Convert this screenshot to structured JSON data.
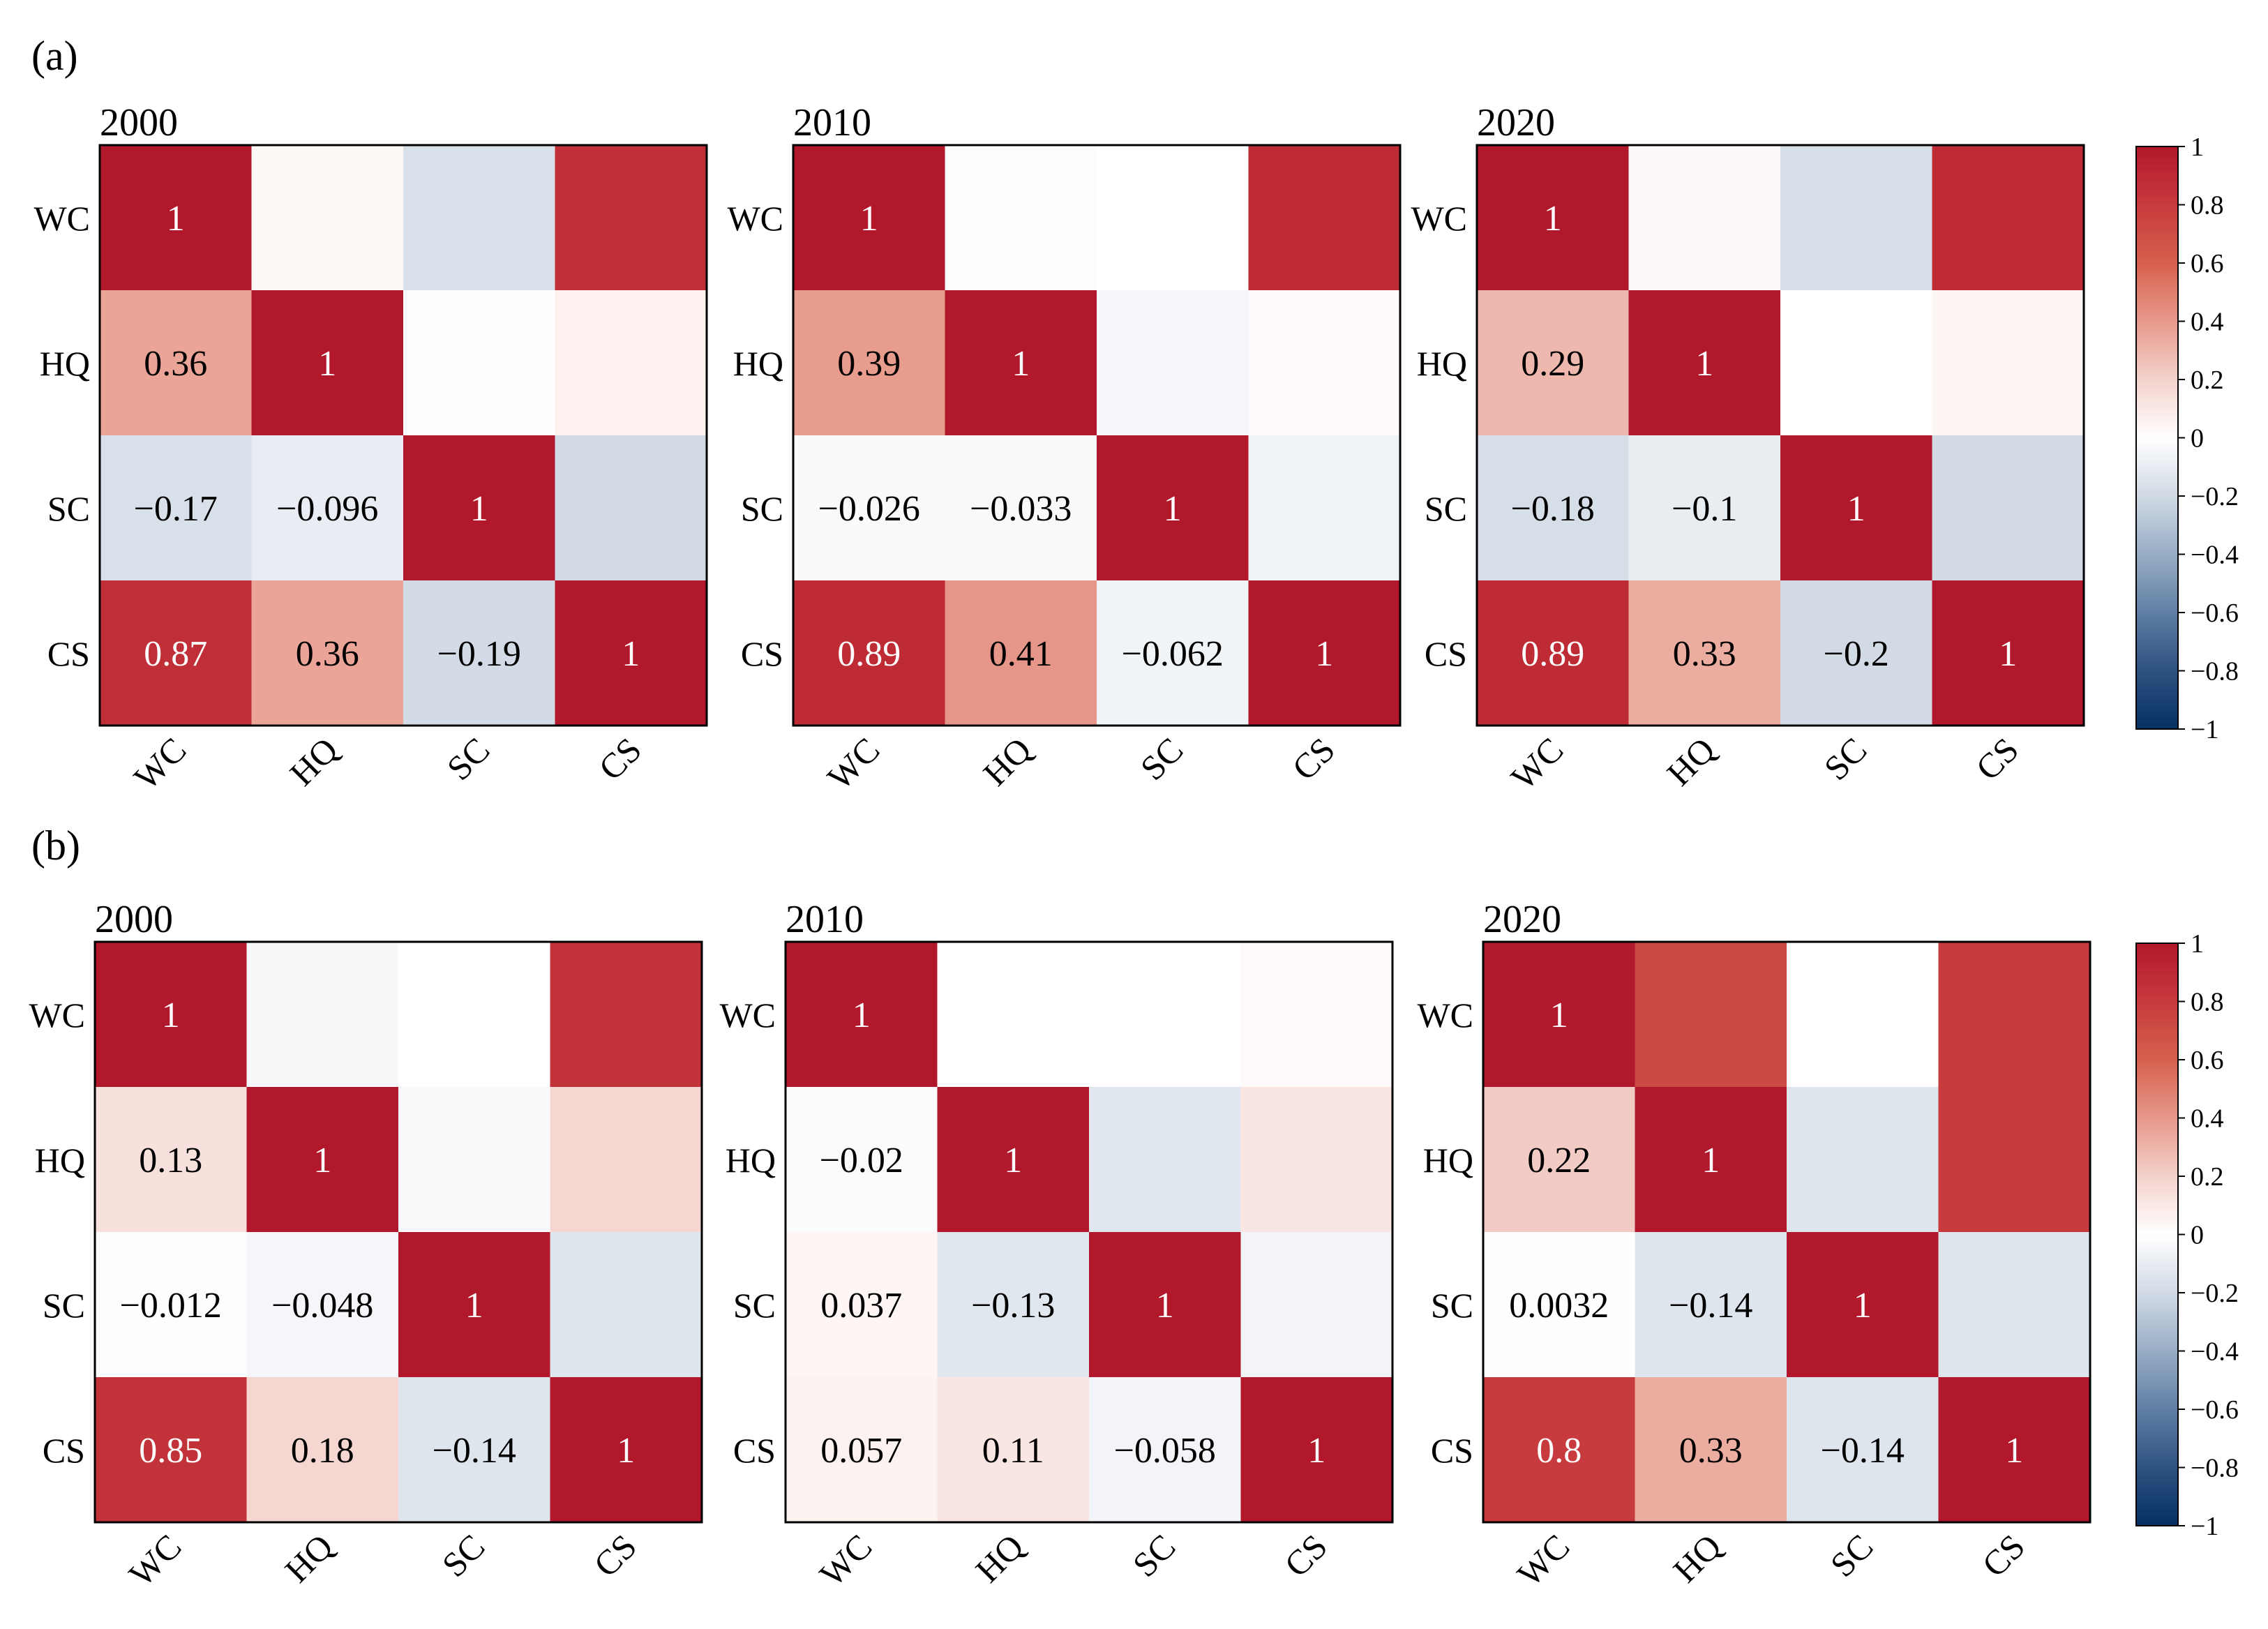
{
  "figure": {
    "panels": [
      {
        "label": "(a)",
        "years": [
          "2000",
          "2010",
          "2020"
        ]
      },
      {
        "label": "(b)",
        "years": [
          "2000",
          "2010",
          "2020"
        ]
      }
    ],
    "colorbar": {
      "ticks": [
        "1",
        "0.8",
        "0.6",
        "0.4",
        "0.2",
        "0",
        "−0.2",
        "−0.4",
        "−0.6",
        "−0.8",
        "−1"
      ]
    },
    "colors": {
      "negative": "#053061",
      "zero": "#ffffff",
      "positive": "#b2182b",
      "frame": "#000000"
    }
  },
  "chart_data": [
    {
      "type": "heatmap",
      "panel": "(a)",
      "title": "2000",
      "variables": [
        "WC",
        "HQ",
        "SC",
        "CS"
      ],
      "vmin": -1,
      "vmax": 1,
      "matrix": [
        [
          1,
          0.036,
          -0.17,
          0.87
        ],
        [
          0.36,
          1,
          -0.005,
          0.06
        ],
        [
          -0.17,
          -0.096,
          1,
          -0.19
        ],
        [
          0.87,
          0.36,
          -0.19,
          1
        ]
      ],
      "labels": [
        [
          "1",
          null,
          null,
          null
        ],
        [
          "0.36",
          "1",
          null,
          null
        ],
        [
          "−0.17",
          "−0.096",
          "1",
          null
        ],
        [
          "0.87",
          "0.36",
          "−0.19",
          "1"
        ]
      ]
    },
    {
      "type": "heatmap",
      "panel": "(a)",
      "title": "2010",
      "variables": [
        "WC",
        "HQ",
        "SC",
        "CS"
      ],
      "vmin": -1,
      "vmax": 1,
      "matrix": [
        [
          1,
          -0.01,
          0.0,
          0.89
        ],
        [
          0.39,
          1,
          -0.05,
          0.02
        ],
        [
          -0.026,
          -0.033,
          1,
          -0.062
        ],
        [
          0.89,
          0.41,
          -0.062,
          1
        ]
      ],
      "labels": [
        [
          "1",
          null,
          null,
          null
        ],
        [
          "0.39",
          "1",
          null,
          null
        ],
        [
          "−0.026",
          "−0.033",
          "1",
          null
        ],
        [
          "0.89",
          "0.41",
          "−0.062",
          "1"
        ]
      ]
    },
    {
      "type": "heatmap",
      "panel": "(a)",
      "title": "2020",
      "variables": [
        "WC",
        "HQ",
        "SC",
        "CS"
      ],
      "vmin": -1,
      "vmax": 1,
      "matrix": [
        [
          1,
          0.03,
          -0.18,
          0.89
        ],
        [
          0.29,
          1,
          0.0,
          0.04
        ],
        [
          -0.18,
          -0.1,
          1,
          -0.2
        ],
        [
          0.89,
          0.33,
          -0.2,
          1
        ]
      ],
      "labels": [
        [
          "1",
          null,
          null,
          null
        ],
        [
          "0.29",
          "1",
          null,
          null
        ],
        [
          "−0.18",
          "−0.1",
          "1",
          null
        ],
        [
          "0.89",
          "0.33",
          "−0.2",
          "1"
        ]
      ]
    },
    {
      "type": "heatmap",
      "panel": "(b)",
      "title": "2000",
      "variables": [
        "WC",
        "HQ",
        "SC",
        "CS"
      ],
      "vmin": -1,
      "vmax": 1,
      "matrix": [
        [
          1,
          -0.04,
          0.0,
          0.85
        ],
        [
          0.13,
          1,
          -0.03,
          0.18
        ],
        [
          -0.012,
          -0.048,
          1,
          -0.14
        ],
        [
          0.85,
          0.18,
          -0.14,
          1
        ]
      ],
      "labels": [
        [
          "1",
          null,
          null,
          null
        ],
        [
          "0.13",
          "1",
          null,
          null
        ],
        [
          "−0.012",
          "−0.048",
          "1",
          null
        ],
        [
          "0.85",
          "0.18",
          "−0.14",
          "1"
        ]
      ]
    },
    {
      "type": "heatmap",
      "panel": "(b)",
      "title": "2010",
      "variables": [
        "WC",
        "HQ",
        "SC",
        "CS"
      ],
      "vmin": -1,
      "vmax": 1,
      "matrix": [
        [
          1,
          0.0,
          0.0,
          0.02
        ],
        [
          -0.02,
          1,
          -0.13,
          0.11
        ],
        [
          0.037,
          -0.13,
          1,
          -0.058
        ],
        [
          0.057,
          0.11,
          -0.058,
          1
        ]
      ],
      "labels": [
        [
          "1",
          null,
          null,
          null
        ],
        [
          "−0.02",
          "1",
          null,
          null
        ],
        [
          "0.037",
          "−0.13",
          "1",
          null
        ],
        [
          "0.057",
          "0.11",
          "−0.058",
          "1"
        ]
      ]
    },
    {
      "type": "heatmap",
      "panel": "(b)",
      "title": "2020",
      "variables": [
        "WC",
        "HQ",
        "SC",
        "CS"
      ],
      "vmin": -1,
      "vmax": 1,
      "matrix": [
        [
          1,
          0.72,
          0.0,
          0.8
        ],
        [
          0.22,
          1,
          -0.14,
          0.8
        ],
        [
          0.0032,
          -0.14,
          1,
          -0.14
        ],
        [
          0.8,
          0.33,
          -0.14,
          1
        ]
      ],
      "labels": [
        [
          "1",
          null,
          null,
          null
        ],
        [
          "0.22",
          "1",
          null,
          null
        ],
        [
          "0.0032",
          "−0.14",
          "1",
          null
        ],
        [
          "0.8",
          "0.33",
          "−0.14",
          "1"
        ]
      ]
    }
  ]
}
